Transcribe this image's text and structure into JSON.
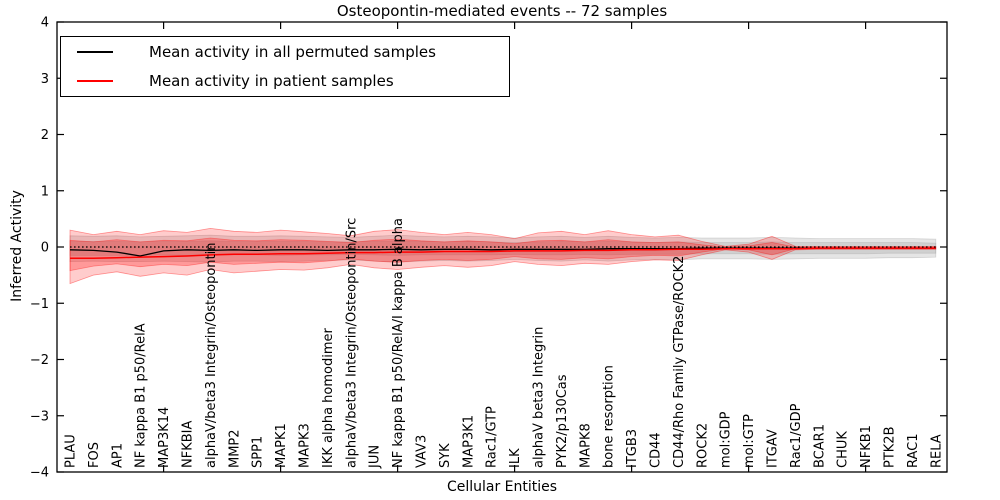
{
  "title": "Osteopontin-mediated events -- 72 samples",
  "legend": {
    "items": [
      {
        "label": "Mean activity in all permuted samples",
        "color": "#000000"
      },
      {
        "label": "Mean activity in patient samples",
        "color": "#ff0000"
      }
    ]
  },
  "chart_data": {
    "type": "line",
    "title": "Osteopontin-mediated events -- 72 samples",
    "xlabel": "Cellular Entities",
    "ylabel": "Inferred Activity",
    "ylim": [
      -4,
      4
    ],
    "yticks": [
      4,
      3,
      2,
      1,
      0,
      -1,
      -2,
      -3,
      -4
    ],
    "ytick_labels": [
      "4",
      "3",
      "2",
      "1",
      "0",
      "−1",
      "−2",
      "−3",
      "−4"
    ],
    "xtick_indices": [
      4,
      9,
      14,
      19,
      24,
      29,
      34
    ],
    "grid": false,
    "legend_position": "upper left",
    "zero_line": 0,
    "categories": [
      "PLAU",
      "FOS",
      "AP1",
      "NF kappa B1 p50/RelA",
      "MAP3K14",
      "NFKBIA",
      "alphaV/beta3 Integrin/Osteopontin",
      "MMP2",
      "SPP1",
      "MAPK1",
      "MAPK3",
      "IKK alpha homodimer",
      "alphaV/beta3 Integrin/Osteopontin/Src",
      "JUN",
      "NF kappa B1 p50/RelA/I kappa B alpha",
      "VAV3",
      "SYK",
      "MAP3K1",
      "Rac1/GTP",
      "ILK",
      "alphaV beta3 Integrin",
      "PYK2/p130Cas",
      "MAPK8",
      "bone resorption",
      "ITGB3",
      "CD44",
      "CD44/Rho Family GTPase/ROCK2",
      "ROCK2",
      "mol:GDP",
      "mol:GTP",
      "ITGAV",
      "Rac1/GDP",
      "BCAR1",
      "CHUK",
      "NFKB1",
      "PTK2B",
      "RAC1",
      "RELA"
    ],
    "series": [
      {
        "name": "Mean activity in all permuted samples",
        "color": "#000000",
        "width": 1.3,
        "values": [
          -0.05,
          -0.06,
          -0.09,
          -0.16,
          -0.07,
          -0.05,
          -0.06,
          -0.05,
          -0.06,
          -0.05,
          -0.05,
          -0.06,
          -0.05,
          -0.05,
          -0.04,
          -0.05,
          -0.04,
          -0.04,
          -0.05,
          -0.04,
          -0.04,
          -0.04,
          -0.04,
          -0.03,
          -0.03,
          -0.03,
          -0.03,
          -0.02,
          -0.02,
          -0.02,
          -0.02,
          -0.02,
          -0.02,
          -0.02,
          -0.02,
          -0.02,
          -0.02,
          -0.02
        ]
      },
      {
        "name": "Mean activity in patient samples",
        "color": "#ff0000",
        "width": 1.5,
        "values": [
          -0.2,
          -0.2,
          -0.19,
          -0.18,
          -0.17,
          -0.16,
          -0.14,
          -0.13,
          -0.13,
          -0.12,
          -0.12,
          -0.11,
          -0.1,
          -0.1,
          -0.09,
          -0.09,
          -0.08,
          -0.08,
          -0.08,
          -0.07,
          -0.07,
          -0.07,
          -0.06,
          -0.06,
          -0.05,
          -0.05,
          -0.04,
          -0.04,
          -0.03,
          -0.03,
          -0.03,
          -0.03,
          -0.02,
          -0.02,
          -0.02,
          -0.02,
          -0.02,
          -0.02
        ]
      }
    ],
    "bands": [
      {
        "name": "permuted-outer-band",
        "color": "#999999",
        "fill_opacity": 0.25,
        "stroke_opacity": 0.35,
        "upper": [
          0.2,
          0.19,
          0.2,
          0.18,
          0.19,
          0.2,
          0.21,
          0.19,
          0.19,
          0.2,
          0.19,
          0.18,
          0.17,
          0.19,
          0.21,
          0.19,
          0.18,
          0.19,
          0.18,
          0.16,
          0.18,
          0.19,
          0.17,
          0.19,
          0.17,
          0.16,
          0.17,
          0.16,
          0.16,
          0.16,
          0.17,
          0.16,
          0.15,
          0.15,
          0.15,
          0.15,
          0.15,
          0.14
        ],
        "lower": [
          -0.26,
          -0.25,
          -0.26,
          -0.26,
          -0.25,
          -0.26,
          -0.27,
          -0.25,
          -0.25,
          -0.26,
          -0.25,
          -0.24,
          -0.23,
          -0.25,
          -0.27,
          -0.25,
          -0.24,
          -0.25,
          -0.24,
          -0.22,
          -0.24,
          -0.25,
          -0.23,
          -0.25,
          -0.23,
          -0.22,
          -0.23,
          -0.21,
          -0.21,
          -0.21,
          -0.22,
          -0.21,
          -0.2,
          -0.2,
          -0.2,
          -0.19,
          -0.19,
          -0.18
        ]
      },
      {
        "name": "permuted-inner-band",
        "color": "#999999",
        "fill_opacity": 0.28,
        "stroke_opacity": 0.3,
        "upper": [
          0.1,
          0.1,
          0.1,
          0.09,
          0.1,
          0.1,
          0.11,
          0.1,
          0.1,
          0.1,
          0.1,
          0.09,
          0.09,
          0.1,
          0.11,
          0.1,
          0.09,
          0.1,
          0.09,
          0.08,
          0.09,
          0.1,
          0.09,
          0.1,
          0.09,
          0.08,
          0.09,
          0.08,
          0.08,
          0.08,
          0.09,
          0.08,
          0.08,
          0.08,
          0.08,
          0.08,
          0.08,
          0.07
        ],
        "lower": [
          -0.15,
          -0.15,
          -0.15,
          -0.15,
          -0.14,
          -0.15,
          -0.15,
          -0.14,
          -0.14,
          -0.15,
          -0.14,
          -0.14,
          -0.13,
          -0.14,
          -0.15,
          -0.14,
          -0.14,
          -0.14,
          -0.14,
          -0.13,
          -0.14,
          -0.14,
          -0.13,
          -0.14,
          -0.13,
          -0.13,
          -0.13,
          -0.12,
          -0.12,
          -0.12,
          -0.13,
          -0.12,
          -0.12,
          -0.12,
          -0.12,
          -0.11,
          -0.11,
          -0.11
        ]
      },
      {
        "name": "patient-outer-band",
        "color": "#ff0000",
        "fill_opacity": 0.2,
        "stroke_opacity": 0.4,
        "upper": [
          0.3,
          0.22,
          0.28,
          0.22,
          0.29,
          0.26,
          0.33,
          0.28,
          0.26,
          0.3,
          0.27,
          0.24,
          0.2,
          0.28,
          0.31,
          0.26,
          0.22,
          0.26,
          0.22,
          0.15,
          0.25,
          0.28,
          0.22,
          0.29,
          0.22,
          0.18,
          0.21,
          0.1,
          0.01,
          0.05,
          0.19,
          0.01,
          0.01,
          0.01,
          0.01,
          0.01,
          0.01,
          0.01
        ],
        "lower": [
          -0.65,
          -0.5,
          -0.44,
          -0.52,
          -0.46,
          -0.5,
          -0.4,
          -0.46,
          -0.43,
          -0.4,
          -0.41,
          -0.37,
          -0.31,
          -0.37,
          -0.4,
          -0.36,
          -0.33,
          -0.36,
          -0.33,
          -0.26,
          -0.31,
          -0.33,
          -0.29,
          -0.31,
          -0.26,
          -0.23,
          -0.24,
          -0.14,
          -0.05,
          -0.09,
          -0.22,
          -0.05,
          -0.04,
          -0.04,
          -0.04,
          -0.04,
          -0.04,
          -0.04
        ]
      },
      {
        "name": "patient-inner-band",
        "color": "#ff0000",
        "fill_opacity": 0.25,
        "stroke_opacity": 0.35,
        "upper": [
          0.12,
          0.09,
          0.13,
          0.09,
          0.12,
          0.11,
          0.16,
          0.12,
          0.11,
          0.13,
          0.12,
          0.1,
          0.08,
          0.12,
          0.14,
          0.11,
          0.09,
          0.11,
          0.09,
          0.06,
          0.11,
          0.12,
          0.09,
          0.13,
          0.09,
          0.08,
          0.09,
          0.04,
          0.0,
          0.02,
          0.08,
          0.0,
          0.0,
          0.0,
          0.0,
          0.0,
          0.0,
          0.0
        ],
        "lower": [
          -0.42,
          -0.34,
          -0.3,
          -0.35,
          -0.31,
          -0.33,
          -0.27,
          -0.31,
          -0.29,
          -0.27,
          -0.28,
          -0.25,
          -0.21,
          -0.25,
          -0.27,
          -0.24,
          -0.22,
          -0.24,
          -0.22,
          -0.17,
          -0.21,
          -0.22,
          -0.19,
          -0.21,
          -0.17,
          -0.15,
          -0.16,
          -0.09,
          -0.03,
          -0.05,
          -0.14,
          -0.03,
          -0.03,
          -0.03,
          -0.03,
          -0.03,
          -0.03,
          -0.03
        ]
      }
    ]
  }
}
